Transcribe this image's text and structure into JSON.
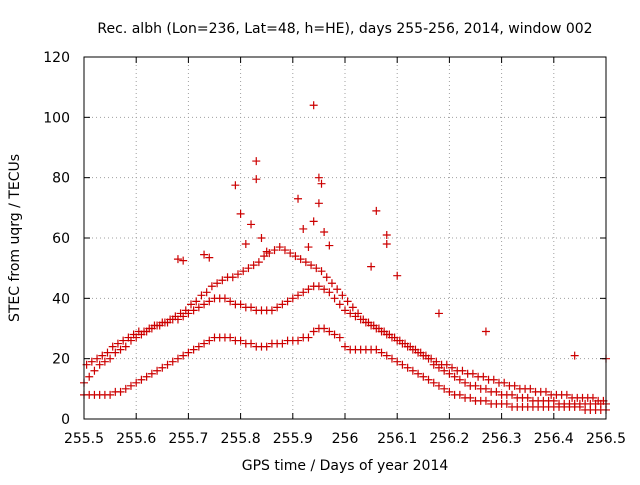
{
  "chart_data": {
    "type": "scatter",
    "title": "Rec. albh (Lon=236, Lat=48, h=HE), days 255-256, 2014, window 002",
    "xlabel": "GPS time / Days of year 2014",
    "ylabel": "STEC from uqrg / TECUs",
    "xlim": [
      255.5,
      256.5
    ],
    "ylim": [
      0,
      120
    ],
    "x_ticks": [
      "255.5",
      "255.6",
      "255.7",
      "255.8",
      "255.9",
      "256",
      "256.1",
      "256.2",
      "256.3",
      "256.4",
      "256.5"
    ],
    "y_ticks": [
      "0",
      "20",
      "40",
      "60",
      "80",
      "100",
      "120"
    ],
    "grid": true,
    "marker": "+",
    "color": "#cc0000",
    "series": [
      {
        "x": [
          255.5,
          255.51,
          255.52,
          255.53,
          255.54,
          255.55,
          255.56,
          255.57,
          255.58,
          255.59,
          255.6,
          255.61,
          255.62,
          255.63,
          255.64,
          255.65,
          255.66,
          255.67,
          255.68,
          255.69,
          255.7,
          255.71,
          255.72,
          255.73,
          255.74,
          255.75,
          255.76,
          255.77,
          255.78,
          255.79,
          255.8,
          255.81,
          255.82,
          255.83,
          255.84,
          255.85,
          255.86,
          255.87,
          255.88,
          255.89,
          255.9,
          255.91,
          255.92,
          255.93,
          255.94,
          255.95,
          255.96,
          255.97,
          255.98,
          255.99,
          256.0,
          256.01,
          256.02,
          256.03,
          256.04,
          256.05,
          256.06,
          256.07,
          256.08,
          256.09,
          256.1,
          256.11,
          256.12,
          256.13,
          256.14,
          256.15,
          256.16,
          256.17,
          256.18,
          256.19,
          256.2,
          256.21,
          256.22,
          256.23,
          256.24,
          256.25,
          256.26,
          256.27,
          256.28,
          256.29,
          256.3,
          256.31,
          256.32,
          256.33,
          256.34,
          256.35,
          256.36,
          256.37,
          256.38,
          256.39,
          256.4,
          256.41,
          256.42,
          256.43,
          256.44,
          256.45,
          256.46,
          256.47,
          256.48,
          256.49,
          256.5,
          255.5,
          255.51,
          255.52,
          255.53,
          255.54,
          255.55,
          255.56,
          255.57,
          255.58,
          255.59,
          255.6,
          255.61,
          255.62,
          255.63,
          255.64,
          255.65,
          255.66,
          255.67,
          255.68,
          255.69,
          255.7,
          255.71,
          255.72,
          255.73,
          255.74,
          255.75,
          255.76,
          255.77,
          255.78,
          255.79,
          255.8,
          255.81,
          255.82,
          255.83,
          255.84,
          255.85,
          255.86,
          255.87,
          255.88,
          255.89,
          255.9,
          255.91,
          255.92,
          255.93,
          255.94,
          255.95,
          255.96,
          255.97,
          255.98,
          255.99,
          256.0,
          256.01,
          256.02,
          256.03,
          256.04,
          256.05,
          256.06,
          256.07,
          256.08,
          256.09,
          256.1,
          256.11,
          256.12,
          256.13,
          256.14,
          256.15,
          256.16,
          256.17,
          256.18,
          256.19,
          256.2,
          256.21,
          256.22,
          256.23,
          256.24,
          256.25,
          256.26,
          256.27,
          256.28,
          256.29,
          256.3,
          256.31,
          256.32,
          256.33,
          256.34,
          256.35,
          256.36,
          256.37,
          256.38,
          256.39,
          256.4,
          256.41,
          256.42,
          256.43,
          256.44,
          256.45,
          256.46,
          256.47,
          256.48,
          256.49,
          256.5,
          255.505,
          255.515,
          255.525,
          255.535,
          255.545,
          255.555,
          255.565,
          255.575,
          255.585,
          255.595,
          255.605,
          255.615,
          255.625,
          255.635,
          255.645,
          255.655,
          255.665,
          255.675,
          255.685,
          255.695,
          255.705,
          255.715,
          255.725,
          255.735,
          255.745,
          255.755,
          255.765,
          255.775,
          255.785,
          255.795,
          255.805,
          255.815,
          255.825,
          255.835,
          255.845,
          255.855,
          255.865,
          255.875,
          255.885,
          255.895,
          255.905,
          255.915,
          255.925,
          255.935,
          255.945,
          255.955,
          255.965,
          255.975,
          255.985,
          255.995,
          256.005,
          256.015,
          256.025,
          256.035,
          256.045,
          256.055,
          256.065,
          256.075,
          256.085,
          256.095,
          256.105,
          256.115,
          256.125,
          256.135,
          256.145,
          256.155,
          256.165,
          256.175,
          256.185,
          256.195,
          256.205,
          256.215,
          256.225,
          256.235,
          256.245,
          256.255,
          256.265,
          256.275,
          256.285,
          256.295,
          256.305,
          256.315,
          256.325,
          256.335,
          256.345,
          256.355,
          256.365,
          256.375,
          256.385,
          256.395,
          256.405,
          256.415,
          256.425,
          256.435,
          256.445,
          256.455,
          256.465,
          256.475,
          256.485,
          256.495,
          255.79,
          255.8,
          255.81,
          255.82,
          255.83,
          255.83,
          255.84,
          255.85,
          255.91,
          255.92,
          255.93,
          255.94,
          255.94,
          255.95,
          255.95,
          255.955,
          255.96,
          255.97,
          256.06,
          256.08,
          256.08,
          256.1,
          256.05,
          255.68,
          255.69,
          255.74,
          255.73,
          256.5,
          256.44,
          256.27,
          256.18
        ],
        "y": [
          8,
          8,
          8,
          8,
          8,
          8,
          9,
          9,
          10,
          11,
          12,
          13,
          14,
          15,
          16,
          17,
          18,
          19,
          20,
          21,
          22,
          23,
          24,
          25,
          26,
          27,
          27,
          27,
          27,
          26,
          26,
          25,
          25,
          24,
          24,
          24,
          25,
          25,
          25,
          26,
          26,
          26,
          27,
          27,
          29,
          30,
          30,
          29,
          28,
          27,
          24,
          23,
          23,
          23,
          23,
          23,
          23,
          22,
          21,
          20,
          19,
          18,
          17,
          16,
          15,
          14,
          13,
          12,
          11,
          10,
          9,
          8,
          8,
          7,
          7,
          6,
          6,
          6,
          5,
          5,
          5,
          5,
          4,
          4,
          4,
          4,
          4,
          4,
          4,
          4,
          4,
          4,
          4,
          4,
          4,
          4,
          3,
          3,
          3,
          3,
          3,
          12,
          14,
          16,
          18,
          19,
          20,
          22,
          23,
          24,
          26,
          27,
          28,
          29,
          30,
          31,
          32,
          32,
          33,
          33,
          34,
          35,
          36,
          37,
          38,
          39,
          40,
          40,
          40,
          39,
          38,
          38,
          37,
          37,
          36,
          36,
          36,
          36,
          37,
          38,
          39,
          40,
          41,
          42,
          43,
          44,
          44,
          43,
          42,
          40,
          38,
          36,
          35,
          34,
          33,
          32,
          31,
          30,
          29,
          28,
          27,
          26,
          25,
          24,
          23,
          22,
          21,
          20,
          18,
          17,
          16,
          15,
          14,
          13,
          12,
          11,
          11,
          10,
          10,
          9,
          9,
          8,
          8,
          8,
          7,
          7,
          7,
          6,
          6,
          6,
          6,
          6,
          5,
          5,
          5,
          5,
          5,
          5,
          5,
          5,
          5,
          5,
          18,
          19,
          20,
          21,
          22,
          24,
          25,
          26,
          27,
          28,
          29,
          29,
          30,
          31,
          31,
          32,
          33,
          34,
          35,
          36,
          38,
          39,
          41,
          42,
          44,
          45,
          46,
          47,
          47,
          48,
          49,
          50,
          51,
          52,
          54,
          55,
          56,
          57,
          56,
          55,
          54,
          53,
          52,
          51,
          50,
          49,
          47,
          45,
          43,
          41,
          39,
          37,
          35,
          33,
          32,
          31,
          30,
          29,
          28,
          27,
          26,
          25,
          24,
          23,
          22,
          21,
          20,
          19,
          18,
          18,
          17,
          16,
          16,
          15,
          15,
          14,
          14,
          13,
          13,
          12,
          12,
          11,
          11,
          10,
          10,
          10,
          9,
          9,
          9,
          8,
          8,
          8,
          8,
          7,
          7,
          7,
          7,
          7,
          6,
          6,
          77.5,
          68,
          58,
          64.5,
          85.5,
          79.5,
          60,
          55.5,
          73,
          63,
          57,
          104,
          65.5,
          80,
          71.5,
          78,
          62,
          57.5,
          69,
          61,
          58,
          47.5,
          50.5,
          53,
          52.5,
          53.5,
          54.5,
          20,
          21,
          29,
          35
        ]
      }
    ]
  }
}
